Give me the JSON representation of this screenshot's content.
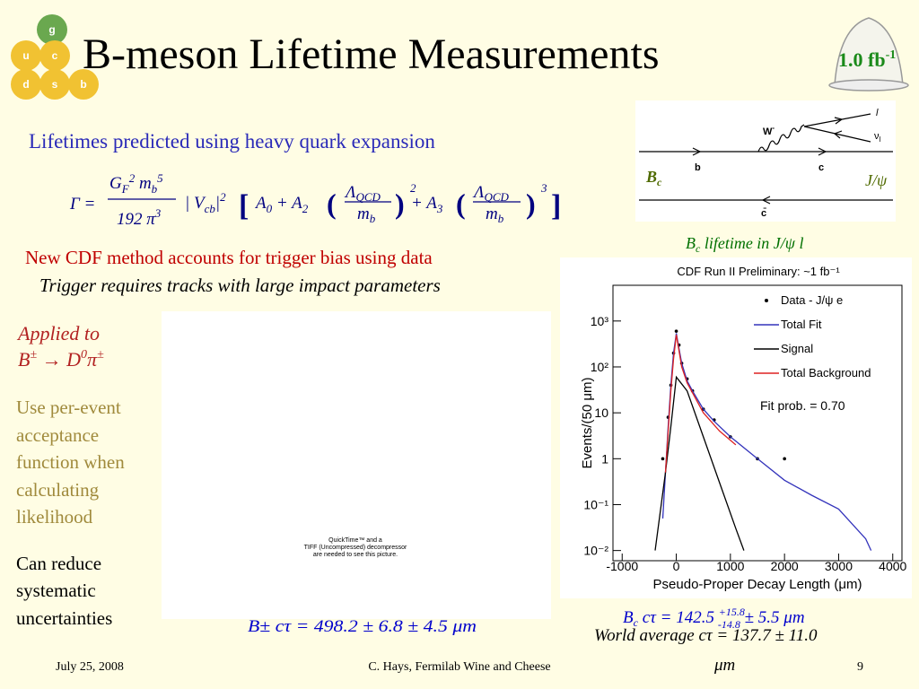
{
  "header": {
    "title": "B-meson Lifetime Measurements",
    "logo": [
      "g",
      "u",
      "c",
      "d",
      "s",
      "b"
    ],
    "lumi": "1.0 fb",
    "lumi_exp": "-1"
  },
  "intro": "Lifetimes predicted using heavy quark expansion",
  "formula": {
    "lhs": "Γ =",
    "num": [
      "G",
      "F",
      "2",
      " m",
      "b",
      "5"
    ],
    "den": [
      "192 π",
      "3"
    ],
    "ckm": [
      "| V",
      "cb",
      "|",
      "2"
    ],
    "open": "[",
    "a0": [
      "A",
      "0",
      " + A",
      "2"
    ],
    "paren1": [
      "(",
      ")",
      "2"
    ],
    "frac1": [
      "Λ",
      "QCD",
      "m",
      "b"
    ],
    "a3": [
      "+ A",
      "3"
    ],
    "paren2": [
      "(",
      ")",
      "3"
    ],
    "frac2": [
      "Λ",
      "QCD",
      "m",
      "b"
    ],
    "close": "]"
  },
  "method": [
    "New CDF method accounts for trigger bias using data",
    "Trigger requires tracks with large impact parameters"
  ],
  "applied": {
    "label": "Applied to",
    "decay": [
      "B",
      "±",
      " → D",
      "0",
      "π",
      "±"
    ]
  },
  "acceptance": [
    "Use per-event",
    "acceptance",
    "function when",
    "calculating",
    "likelihood"
  ],
  "systematics": [
    "Can reduce",
    "systematic",
    "uncertainties"
  ],
  "placeholder": [
    "QuickTime™ and a",
    "TIFF (Uncompressed) decompressor",
    "are needed to see this picture."
  ],
  "bpm_result": "B± cτ = 498.2 ± 6.8 ± 4.5 μm",
  "diagram": {
    "w": "W",
    "w_charge": "-",
    "lepton": "l",
    "nu": "ν",
    "nu_sub": "l",
    "b": "b",
    "c": "c",
    "cbar": "c̄",
    "bc": [
      "B",
      "c"
    ],
    "jpsi": "J/ψ"
  },
  "plot_caption": [
    "B",
    "c",
    " lifetime in J/ψ l"
  ],
  "chart_data": {
    "type": "line",
    "title": "CDF Run II Preliminary: ~1 fb⁻¹",
    "xlabel": "Pseudo-Proper Decay Length (μm)",
    "ylabel": "Events/(50 μm)",
    "annotation": "Fit prob. = 0.70",
    "ylog": true,
    "xlim": [
      -1170,
      4170
    ],
    "ylim": [
      0.006,
      6000
    ],
    "xticks": [
      -1000,
      0,
      1000,
      2000,
      3000,
      4000
    ],
    "yticks": [
      {
        "value": 0.01,
        "label": "10⁻²"
      },
      {
        "value": 0.1,
        "label": "10⁻¹"
      },
      1,
      10,
      {
        "value": 100,
        "label": "10²"
      },
      {
        "value": 1000,
        "label": "10³"
      }
    ],
    "legend": "upper right",
    "series": [
      {
        "name": "Data - J/ψ e",
        "color": "#000000",
        "marker": true,
        "x": [
          -250,
          -150,
          -100,
          -50,
          0,
          50,
          100,
          200,
          300,
          500,
          700,
          1000,
          1500,
          2000
        ],
        "values": [
          1,
          8,
          40,
          200,
          600,
          300,
          120,
          55,
          30,
          12,
          7,
          3,
          1,
          1
        ]
      },
      {
        "name": "Total Fit",
        "color": "#3333bb",
        "x": [
          -250,
          -200,
          -150,
          -100,
          -50,
          0,
          50,
          100,
          200,
          300,
          500,
          700,
          1000,
          1500,
          2000,
          2500,
          3000,
          3500,
          3600
        ],
        "values": [
          0.05,
          0.5,
          5,
          40,
          200,
          540,
          250,
          120,
          50,
          30,
          12,
          6.5,
          3,
          1,
          0.34,
          0.16,
          0.08,
          0.018,
          0.01
        ]
      },
      {
        "name": "Signal",
        "color": "#000000",
        "x": [
          -390,
          -200,
          -100,
          0,
          200,
          500,
          800,
          1100,
          1250
        ],
        "values": [
          0.01,
          0.5,
          5,
          60,
          30,
          3,
          0.3,
          0.03,
          0.01
        ]
      },
      {
        "name": "Total Background",
        "color": "#dd2222",
        "x": [
          -200,
          -100,
          -50,
          0,
          100,
          200,
          500,
          800,
          1100
        ],
        "values": [
          0.5,
          30,
          150,
          500,
          100,
          45,
          10,
          4,
          2
        ]
      }
    ]
  },
  "bc_result": [
    "B",
    "c",
    " cτ = 142.5 ",
    "+15.8",
    "-14.8",
    " ± 5.5 μm"
  ],
  "world_average": [
    "World average cτ = 137.7 ± 11.0",
    "μm"
  ],
  "footer": {
    "date": "July 25, 2008",
    "author": "C. Hays, Fermilab Wine and Cheese",
    "page": "9"
  }
}
